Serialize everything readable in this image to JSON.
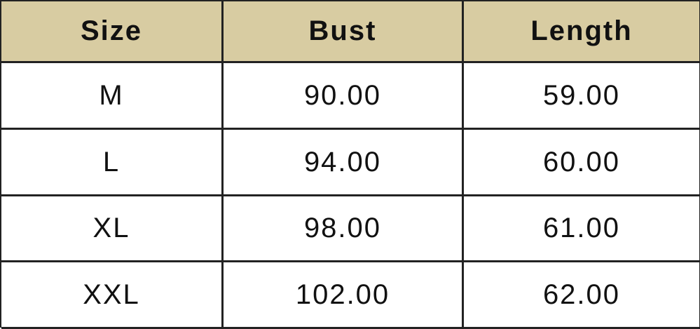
{
  "table": {
    "header": [
      "Size",
      "Bust",
      "Length"
    ],
    "rows": [
      [
        "M",
        "90.00",
        "59.00"
      ],
      [
        "L",
        "94.00",
        "60.00"
      ],
      [
        "XL",
        "98.00",
        "61.00"
      ],
      [
        "XXL",
        "102.00",
        "62.00"
      ]
    ]
  }
}
